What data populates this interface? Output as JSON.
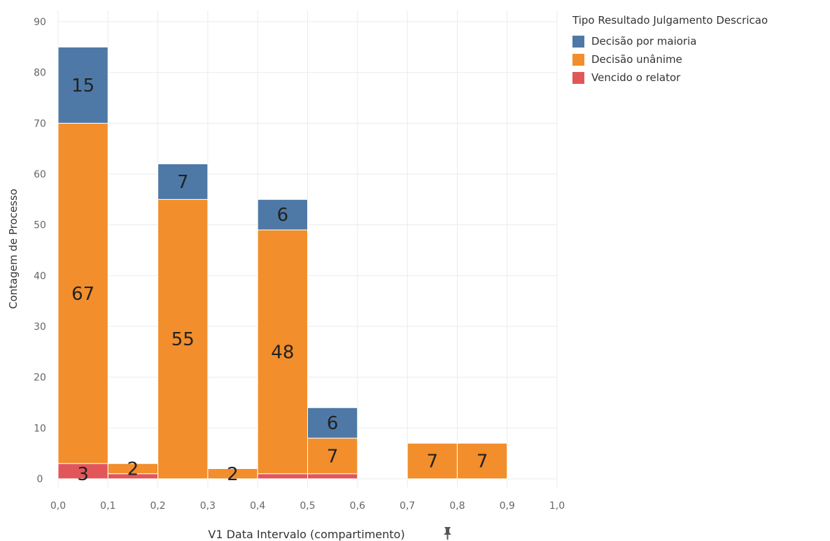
{
  "chart_data": {
    "type": "bar",
    "stacked": true,
    "xlabel": "V1 Data Intervalo (compartimento)",
    "ylabel": "Contagem de Processo",
    "xlim": [
      0.0,
      1.0
    ],
    "ylim": [
      0,
      90
    ],
    "yticks": [
      0,
      10,
      20,
      30,
      40,
      50,
      60,
      70,
      80,
      90
    ],
    "xticks": [
      "0,0",
      "0,1",
      "0,2",
      "0,3",
      "0,4",
      "0,5",
      "0,6",
      "0,7",
      "0,8",
      "0,9",
      "1,0"
    ],
    "bin_width": 0.1,
    "bins": [
      0.0,
      0.1,
      0.2,
      0.3,
      0.4,
      0.5,
      0.7,
      0.8
    ],
    "grid": true,
    "legend_title": "Tipo Resultado Julgamento Descricao",
    "legend_position": "top-right",
    "series": [
      {
        "name": "Vencido o relator",
        "color": "#e15759",
        "values": [
          3,
          1,
          0,
          0,
          1,
          1,
          0,
          0
        ]
      },
      {
        "name": "Decisão unânime",
        "color": "#f28e2b",
        "values": [
          67,
          2,
          55,
          2,
          48,
          7,
          7,
          7
        ]
      },
      {
        "name": "Decisão por maioria",
        "color": "#4e79a7",
        "values": [
          15,
          0,
          7,
          0,
          6,
          6,
          0,
          0
        ]
      }
    ],
    "data_labels": [
      {
        "bin": 0.0,
        "series": "Vencido o relator",
        "text": "3"
      },
      {
        "bin": 0.0,
        "series": "Decisão unânime",
        "text": "67"
      },
      {
        "bin": 0.0,
        "series": "Decisão por maioria",
        "text": "15"
      },
      {
        "bin": 0.1,
        "series": "Decisão unânime",
        "text": "2"
      },
      {
        "bin": 0.2,
        "series": "Decisão unânime",
        "text": "55"
      },
      {
        "bin": 0.2,
        "series": "Decisão por maioria",
        "text": "7"
      },
      {
        "bin": 0.3,
        "series": "Decisão unânime",
        "text": "2"
      },
      {
        "bin": 0.4,
        "series": "Decisão unânime",
        "text": "48"
      },
      {
        "bin": 0.4,
        "series": "Decisão por maioria",
        "text": "6"
      },
      {
        "bin": 0.5,
        "series": "Decisão unânime",
        "text": "7"
      },
      {
        "bin": 0.5,
        "series": "Decisão por maioria",
        "text": "6"
      },
      {
        "bin": 0.7,
        "series": "Decisão unânime",
        "text": "7"
      },
      {
        "bin": 0.8,
        "series": "Decisão unânime",
        "text": "7"
      }
    ]
  },
  "legend": {
    "title": "Tipo Resultado Julgamento Descricao",
    "items": [
      {
        "label": "Decisão por maioria",
        "color": "#4e79a7"
      },
      {
        "label": "Decisão unânime",
        "color": "#f28e2b"
      },
      {
        "label": "Vencido o relator",
        "color": "#e15759"
      }
    ]
  },
  "icons": {
    "xlabel_pin": "pin-icon"
  }
}
